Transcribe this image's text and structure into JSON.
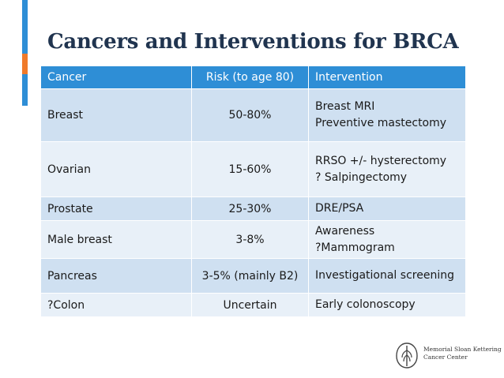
{
  "title": "Cancers and Interventions for BRCA",
  "table": {
    "headers": [
      "Cancer",
      "Risk (to age 80)",
      "Intervention"
    ],
    "rows": [
      {
        "cancer": "Breast",
        "risk": "50-80%",
        "intervention": [
          "Breast MRI",
          "Preventive mastectomy"
        ]
      },
      {
        "cancer": "Ovarian",
        "risk": "15-60%",
        "intervention": [
          "RRSO +/- hysterectomy",
          "? Salpingectomy"
        ]
      },
      {
        "cancer": "Prostate",
        "risk": "25-30%",
        "intervention": [
          "DRE/PSA"
        ]
      },
      {
        "cancer": "Male breast",
        "risk": "3-8%",
        "intervention": [
          "Awareness",
          "?Mammogram"
        ]
      },
      {
        "cancer": "Pancreas",
        "risk": "3-5% (mainly B2)",
        "intervention": [
          "Investigational screening"
        ]
      },
      {
        "cancer": "?Colon",
        "risk": "Uncertain",
        "intervention": [
          "Early colonoscopy"
        ]
      }
    ]
  },
  "logo": {
    "line1": "Memorial Sloan Kettering",
    "line2": "Cancer Center"
  },
  "colors": {
    "accent_blue": "#2e8ed6",
    "accent_orange": "#f07a2a",
    "title": "#20344f",
    "row_dark": "#cfe0f1",
    "row_light": "#e8f0f8"
  }
}
